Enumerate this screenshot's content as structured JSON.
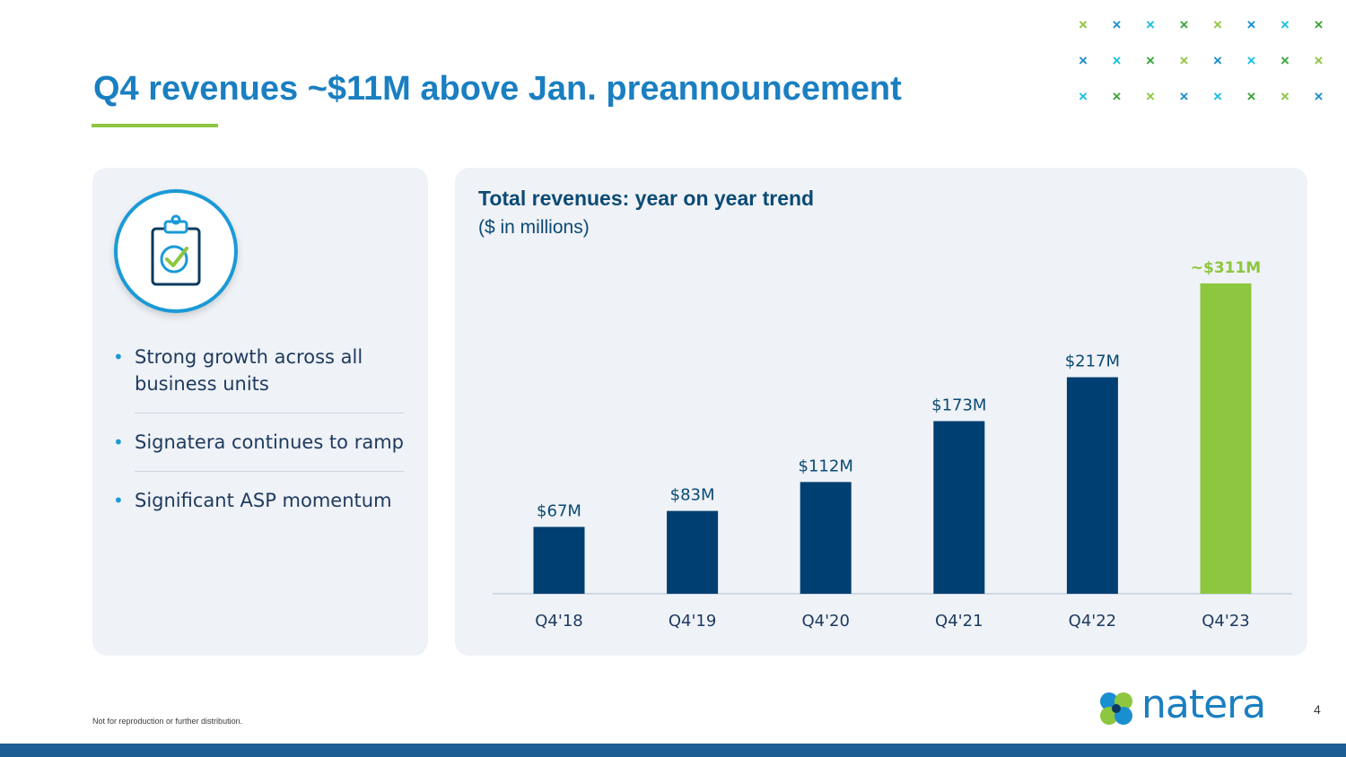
{
  "slide": {
    "title": "Q4 revenues ~$11M above Jan. preannouncement",
    "footer_note": "Not for reproduction or further distribution.",
    "page_number": "4",
    "logo_text": "natera",
    "colors": {
      "title_blue": "#1a7fc1",
      "navy_bar": "#003f72",
      "accent_green": "#8dc63f",
      "panel_bg": "#eff2f6"
    }
  },
  "decor": {
    "x_glyph": "×",
    "x_colors": [
      "#8dc63f",
      "#1a8fd0",
      "#19c0e0",
      "#3aa63a"
    ]
  },
  "left_panel": {
    "icon": "clipboard-check-icon",
    "bullets": [
      "Strong growth across all business units",
      "Signatera continues to ramp",
      "Significant ASP momentum"
    ]
  },
  "chart_data": {
    "type": "bar",
    "title": "Total revenues: year on year trend",
    "subtitle": "($ in millions)",
    "xlabel": "",
    "ylabel": "",
    "ylim": [
      0,
      311
    ],
    "categories": [
      "Q4'18",
      "Q4'19",
      "Q4'20",
      "Q4'21",
      "Q4'22",
      "Q4'23"
    ],
    "values": [
      67,
      83,
      112,
      173,
      217,
      311
    ],
    "labels": [
      "$67M",
      "$83M",
      "$112M",
      "$173M",
      "$217M",
      "~$311M"
    ],
    "highlight_index": 5,
    "grid": false
  }
}
